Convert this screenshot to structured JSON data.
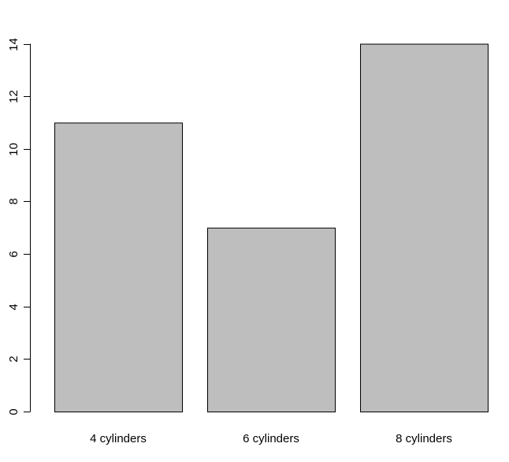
{
  "chart_data": {
    "type": "bar",
    "title": "",
    "xlabel": "",
    "ylabel": "",
    "categories": [
      "4 cylinders",
      "6 cylinders",
      "8 cylinders"
    ],
    "values": [
      11,
      7,
      14
    ],
    "ylim": [
      0,
      14
    ],
    "yticks": [
      0,
      2,
      4,
      6,
      8,
      10,
      12,
      14
    ],
    "grid": false,
    "legend": "none",
    "colors": {
      "bar_fill": "#bebebe",
      "bar_stroke": "#000000",
      "axis": "#000000",
      "background": "#ffffff"
    }
  }
}
